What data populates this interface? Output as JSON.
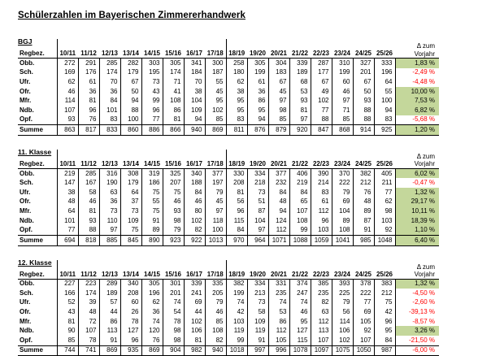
{
  "title": "Schülerzahlen im Bayerischen Zimmererhandwerk",
  "colors": {
    "positive_bg": "#c4d79b",
    "negative_text": "#ff0000",
    "border": "#000000"
  },
  "table": {
    "region_header": "Regbez.",
    "delta_header_line1": "Δ zum",
    "delta_header_line2": "Vorjahr",
    "years": [
      "10/11",
      "11/12",
      "12/13",
      "13/14",
      "14/15",
      "15/16",
      "16/17",
      "17/18",
      "18/19",
      "19/20",
      "20/21",
      "21/22",
      "22/23",
      "23/24",
      "24/25",
      "25/26"
    ],
    "sections": [
      {
        "label": "BGJ",
        "rows": [
          {
            "label": "Obb.",
            "values": [
              272,
              291,
              285,
              282,
              303,
              305,
              341,
              300,
              258,
              305,
              304,
              339,
              287,
              310,
              327,
              333
            ],
            "delta": "1,83 %",
            "trend": "positive"
          },
          {
            "label": "Sch.",
            "values": [
              169,
              176,
              174,
              179,
              195,
              174,
              184,
              187,
              180,
              199,
              183,
              189,
              177,
              199,
              201,
              196
            ],
            "delta": "-2,49 %",
            "trend": "negative"
          },
          {
            "label": "Ufr.",
            "values": [
              62,
              61,
              70,
              67,
              73,
              71,
              70,
              55,
              62,
              61,
              67,
              68,
              67,
              60,
              67,
              64
            ],
            "delta": "-4,48 %",
            "trend": "negative"
          },
          {
            "label": "Ofr.",
            "values": [
              46,
              36,
              36,
              50,
              43,
              41,
              38,
              45,
              38,
              36,
              45,
              53,
              49,
              46,
              50,
              55
            ],
            "delta": "10,00 %",
            "trend": "positive"
          },
          {
            "label": "Mfr.",
            "values": [
              114,
              81,
              84,
              94,
              99,
              108,
              104,
              95,
              95,
              86,
              97,
              93,
              102,
              97,
              93,
              100
            ],
            "delta": "7,53 %",
            "trend": "positive"
          },
          {
            "label": "Ndb.",
            "values": [
              107,
              96,
              101,
              88,
              96,
              86,
              109,
              102,
              95,
              95,
              98,
              81,
              77,
              71,
              88,
              94
            ],
            "delta": "6,82 %",
            "trend": "positive"
          },
          {
            "label": "Opf.",
            "values": [
              93,
              76,
              83,
              100,
              77,
              81,
              94,
              85,
              83,
              94,
              85,
              97,
              88,
              85,
              88,
              83
            ],
            "delta": "-5,68 %",
            "trend": "negative"
          }
        ],
        "summe": {
          "label": "Summe",
          "values": [
            863,
            817,
            833,
            860,
            886,
            866,
            940,
            869,
            811,
            876,
            879,
            920,
            847,
            868,
            914,
            925
          ],
          "delta": "1,20 %",
          "trend": "positive"
        }
      },
      {
        "label": "11. Klasse",
        "rows": [
          {
            "label": "Obb.",
            "values": [
              219,
              285,
              316,
              308,
              319,
              325,
              340,
              377,
              330,
              334,
              377,
              406,
              390,
              370,
              382,
              405
            ],
            "delta": "6,02 %",
            "trend": "positive"
          },
          {
            "label": "Sch.",
            "values": [
              147,
              167,
              190,
              179,
              186,
              207,
              188,
              197,
              208,
              218,
              232,
              219,
              214,
              222,
              212,
              211
            ],
            "delta": "-0,47 %",
            "trend": "negative"
          },
          {
            "label": "Ufr.",
            "values": [
              38,
              58,
              63,
              64,
              75,
              75,
              84,
              79,
              81,
              73,
              84,
              84,
              83,
              79,
              76,
              77
            ],
            "delta": "1,32 %",
            "trend": "positive"
          },
          {
            "label": "Ofr.",
            "values": [
              48,
              46,
              36,
              37,
              55,
              46,
              46,
              45,
              56,
              51,
              48,
              65,
              61,
              69,
              48,
              62
            ],
            "delta": "29,17 %",
            "trend": "positive"
          },
          {
            "label": "Mfr.",
            "values": [
              64,
              81,
              73,
              73,
              75,
              93,
              80,
              97,
              96,
              87,
              94,
              107,
              112,
              104,
              89,
              98
            ],
            "delta": "10,11 %",
            "trend": "positive"
          },
          {
            "label": "Ndb.",
            "values": [
              101,
              93,
              110,
              109,
              91,
              98,
              102,
              118,
              115,
              104,
              124,
              108,
              96,
              89,
              87,
              103
            ],
            "delta": "18,39 %",
            "trend": "positive"
          },
          {
            "label": "Opf.",
            "values": [
              77,
              88,
              97,
              75,
              89,
              79,
              82,
              100,
              84,
              97,
              112,
              99,
              103,
              108,
              91,
              92
            ],
            "delta": "1,10 %",
            "trend": "positive"
          }
        ],
        "summe": {
          "label": "Summe",
          "values": [
            694,
            818,
            885,
            845,
            890,
            923,
            922,
            1013,
            970,
            964,
            1071,
            1088,
            1059,
            1041,
            985,
            1048
          ],
          "delta": "6,40 %",
          "trend": "positive"
        }
      },
      {
        "label": "12. Klasse",
        "rows": [
          {
            "label": "Obb.",
            "values": [
              227,
              223,
              289,
              340,
              305,
              301,
              339,
              335,
              382,
              334,
              331,
              374,
              385,
              393,
              378,
              383
            ],
            "delta": "1,32 %",
            "trend": "positive"
          },
          {
            "label": "Sch.",
            "values": [
              166,
              174,
              189,
              208,
              196,
              201,
              241,
              205,
              199,
              213,
              235,
              247,
              235,
              225,
              222,
              212
            ],
            "delta": "-4,50 %",
            "trend": "negative"
          },
          {
            "label": "Ufr.",
            "values": [
              52,
              39,
              57,
              60,
              62,
              74,
              69,
              79,
              74,
              73,
              74,
              74,
              82,
              79,
              77,
              75
            ],
            "delta": "-2,60 %",
            "trend": "negative"
          },
          {
            "label": "Ofr.",
            "values": [
              43,
              48,
              44,
              26,
              36,
              54,
              44,
              46,
              42,
              58,
              53,
              46,
              63,
              56,
              69,
              42
            ],
            "delta": "-39,13 %",
            "trend": "negative"
          },
          {
            "label": "Mfr.",
            "values": [
              81,
              72,
              86,
              78,
              74,
              78,
              102,
              85,
              103,
              109,
              86,
              95,
              112,
              114,
              105,
              96
            ],
            "delta": "-8,57 %",
            "trend": "negative"
          },
          {
            "label": "Ndb.",
            "values": [
              90,
              107,
              113,
              127,
              120,
              98,
              106,
              108,
              119,
              119,
              112,
              127,
              113,
              106,
              92,
              95
            ],
            "delta": "3,26 %",
            "trend": "positive"
          },
          {
            "label": "Opf.",
            "values": [
              85,
              78,
              91,
              96,
              76,
              98,
              81,
              82,
              99,
              91,
              105,
              115,
              107,
              102,
              107,
              84
            ],
            "delta": "-21,50 %",
            "trend": "negative"
          }
        ],
        "summe": {
          "label": "Summe",
          "values": [
            744,
            741,
            869,
            935,
            869,
            904,
            982,
            940,
            1018,
            997,
            996,
            1078,
            1097,
            1075,
            1050,
            987
          ],
          "delta": "-6,00 %",
          "trend": "negative"
        }
      }
    ]
  }
}
